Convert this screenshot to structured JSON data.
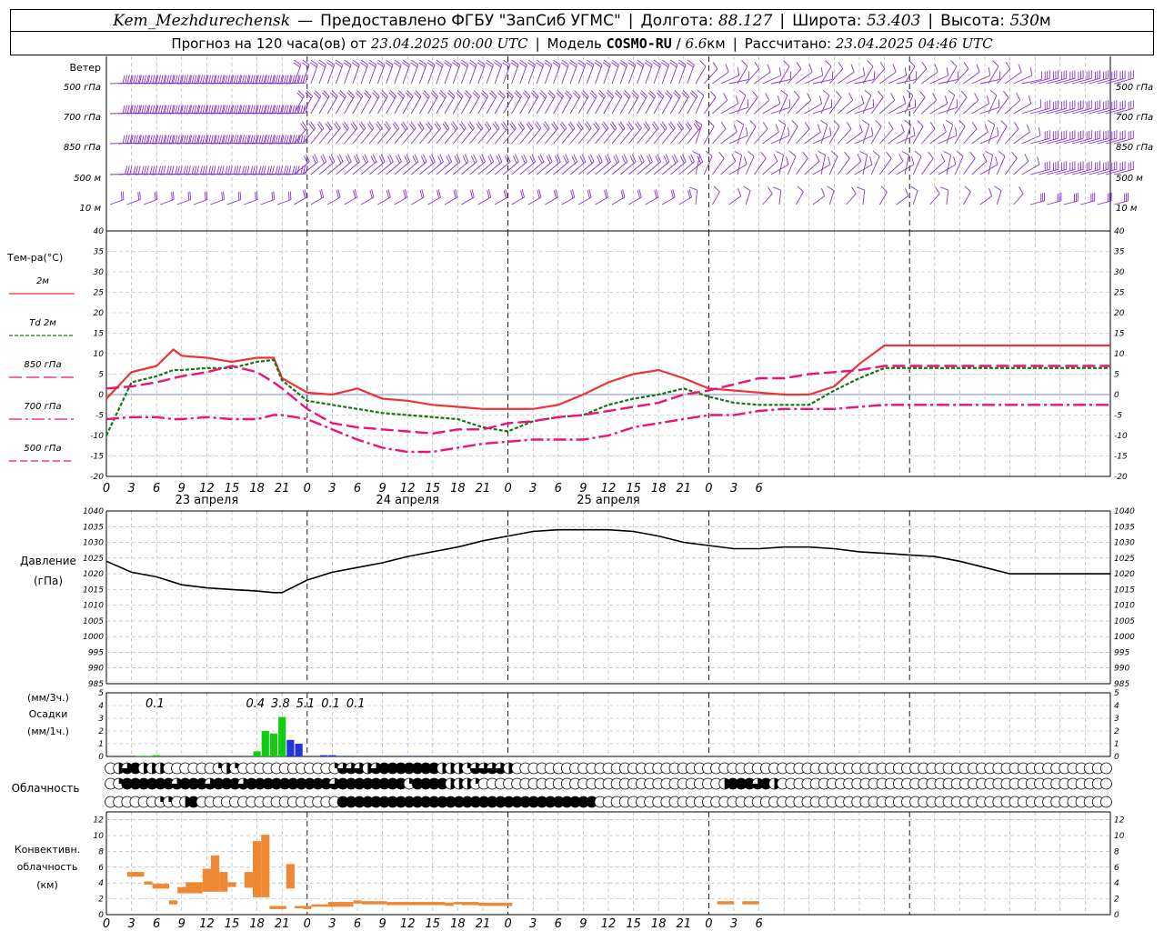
{
  "header": {
    "station": "Kem_Mezhdurechensk",
    "provider": "Предоставлено ФГБУ \"ЗапСиб УГМС\"",
    "lon_label": "Долгота:",
    "lon": "88.127",
    "lat_label": "Широта:",
    "lat": "53.403",
    "alt_label": "Высота:",
    "alt": "530",
    "alt_unit": "м",
    "forecast_label": "Прогноз на 120 часа(ов) от",
    "forecast_from": "23.04.2025 00:00 UTC",
    "model_label": "Модель",
    "model": "COSMO-RU",
    "model_res": "6.6",
    "model_res_unit": "км",
    "computed_label": "Рассчитано:",
    "computed": "23.04.2025 04:46 UTC"
  },
  "time_axis": {
    "hour_labels": [
      "0",
      "3",
      "6",
      "9",
      "12",
      "15",
      "18",
      "21",
      "0",
      "3",
      "6",
      "9",
      "12",
      "15",
      "18",
      "21",
      "0",
      "3",
      "6",
      "9",
      "12",
      "15",
      "18",
      "21",
      "0",
      "3",
      "6"
    ],
    "day_labels": [
      "23 апреля",
      "24 апреля",
      "25 апреля"
    ]
  },
  "wind_panel": {
    "title": "Ветер",
    "levels": [
      "500 гПа",
      "700 гПа",
      "850 гПа",
      "500 м",
      "10  м"
    ]
  },
  "chart_data": [
    {
      "type": "line",
      "panel": "temperature",
      "title": "Тем-ра(°C)",
      "ylim": [
        -20,
        40
      ],
      "yticks": [
        "-20",
        "-15",
        "-10",
        "-5",
        "0",
        "5",
        "10",
        "15",
        "20",
        "25",
        "30",
        "35",
        "40"
      ],
      "x_hours": [
        0,
        3,
        6,
        8,
        9,
        12,
        15,
        18,
        20,
        21,
        24,
        27,
        30,
        33,
        36,
        39,
        42,
        45,
        48,
        51,
        54,
        57,
        60,
        63,
        66,
        69,
        72,
        75,
        78,
        81,
        84,
        87,
        90,
        93,
        96,
        99,
        102,
        105,
        108,
        111,
        114,
        117,
        120
      ],
      "series": [
        {
          "name": "2м",
          "color": "#ee3333",
          "dash": "",
          "values": [
            -1,
            5.5,
            7,
            11,
            9.5,
            9,
            8,
            9,
            9,
            4,
            0.5,
            0,
            1.5,
            -1,
            -1.5,
            -2.5,
            -3,
            -3.5,
            -3.5,
            -3.5,
            -2.5,
            0,
            3,
            5,
            6,
            4,
            1.5,
            1,
            0.5,
            0,
            0,
            2,
            7.5,
            12,
            12,
            12,
            12,
            12,
            12,
            12,
            12,
            12,
            12
          ]
        },
        {
          "name": "Td 2м",
          "color": "#117711",
          "dash": "4,2",
          "values": [
            -10,
            3,
            4.5,
            6,
            6,
            6.5,
            6.5,
            8,
            8.5,
            3.5,
            -1.5,
            -2.5,
            -3.5,
            -4.5,
            -5,
            -5.5,
            -6,
            -8,
            -9,
            -6.5,
            -5.5,
            -5,
            -2.5,
            -1,
            0,
            1.5,
            -0.5,
            -2,
            -2.5,
            -2.5,
            -2.5,
            1,
            4,
            6.5,
            6.5,
            6.5,
            6.5,
            6.5,
            6.5,
            6.5,
            6.5,
            6.5,
            6.5
          ]
        },
        {
          "name": "850 гПа",
          "color": "#ee1177",
          "dash": "14,5",
          "values": [
            1.5,
            2,
            3,
            4,
            4.5,
            5.5,
            7,
            5.5,
            3,
            1.5,
            -3.5,
            -7,
            -8,
            -8.5,
            -9,
            -9.5,
            -8.5,
            -8.5,
            -7,
            -6.5,
            -5.5,
            -5,
            -4,
            -3,
            -2,
            0,
            1,
            2.5,
            4,
            4,
            5,
            5.5,
            6,
            7,
            7,
            7,
            7,
            7,
            7,
            7,
            7,
            7,
            7
          ]
        },
        {
          "name": "700 гПа",
          "color": "#ee1177",
          "dash": "14,4,3,4",
          "values": [
            -6,
            -5.5,
            -5.5,
            -6,
            -6,
            -5.5,
            -6,
            -6,
            -5,
            -5,
            -6,
            -8.5,
            -11,
            -13,
            -14,
            -14,
            -13,
            -12,
            -11.5,
            -11,
            -11,
            -11,
            -10,
            -8,
            -7,
            -6,
            -5,
            -5,
            -4,
            -3.5,
            -3.5,
            -3.5,
            -3,
            -2.5,
            -2.5,
            -2.5,
            -2.5,
            -2.5,
            -2.5,
            -2.5,
            -2.5,
            -2.5,
            -2.5
          ]
        },
        {
          "name": "500 гПа",
          "color": "#ee1177",
          "dash": "8,4",
          "values": []
        }
      ]
    },
    {
      "type": "line",
      "panel": "pressure",
      "title": "Давление",
      "ylabel": "(гПа)",
      "ylim": [
        985,
        1040
      ],
      "yticks": [
        "985",
        "990",
        "995",
        "1000",
        "1005",
        "1010",
        "1015",
        "1020",
        "1025",
        "1030",
        "1035",
        "1040"
      ],
      "x_hours": [
        0,
        3,
        6,
        9,
        12,
        15,
        18,
        20,
        21,
        24,
        27,
        30,
        33,
        36,
        39,
        42,
        45,
        48,
        51,
        54,
        57,
        60,
        63,
        66,
        69,
        72,
        75,
        78,
        81,
        84,
        87,
        90,
        93,
        96,
        99,
        102,
        105,
        108,
        111,
        114,
        117,
        120
      ],
      "series": [
        {
          "name": "",
          "color": "#000000",
          "values": [
            1024,
            1020.5,
            1019,
            1016.5,
            1015.5,
            1015,
            1014.5,
            1014,
            1014,
            1018,
            1020.5,
            1022,
            1023.5,
            1025.5,
            1027,
            1028.5,
            1030.5,
            1032,
            1033.5,
            1034,
            1034,
            1034,
            1033.5,
            1032,
            1030,
            1029,
            1028,
            1028,
            1028.5,
            1028.5,
            1028,
            1027,
            1026.5,
            1026,
            1025.5,
            1024,
            1022,
            1020,
            1020,
            1020,
            1020,
            1020
          ]
        }
      ]
    },
    {
      "type": "bar",
      "panel": "precipitation",
      "ylabel": "(мм/3ч.)",
      "title": "Осадки",
      "ylabel2": "(мм/1ч.)",
      "ylim": [
        0,
        5
      ],
      "yticks": [
        "0",
        "1",
        "2",
        "3",
        "4",
        "5"
      ],
      "x_hours": [
        4,
        5,
        6,
        7,
        8,
        18,
        19,
        20,
        21,
        22,
        23,
        24,
        25,
        26,
        27,
        28,
        36,
        37,
        38,
        39,
        40,
        41,
        42
      ],
      "rain_mm_per_hour": [
        0.05,
        0.05,
        0.1,
        0,
        0,
        0.4,
        2,
        1.8,
        3.1,
        0,
        0,
        0,
        0,
        0,
        0,
        0,
        0,
        0,
        0,
        0,
        0,
        0,
        0
      ],
      "snow_mm_per_hour": [
        0,
        0,
        0,
        0,
        0,
        0,
        0,
        0,
        0,
        1.3,
        1.0,
        0,
        0,
        0.1,
        0.1,
        0.05,
        0.05,
        0.05,
        0.05,
        0,
        0,
        0,
        0
      ],
      "totals_3h": [
        {
          "hour": 4.5,
          "value": "0.1"
        },
        {
          "hour": 16.5,
          "value": "0.4"
        },
        {
          "hour": 19.5,
          "value": "3.8"
        },
        {
          "hour": 22.5,
          "value": "5.1"
        },
        {
          "hour": 25.5,
          "value": "0.1"
        },
        {
          "hour": 28.5,
          "value": "0.1"
        }
      ],
      "colors": {
        "rain": "#11cc11",
        "snow": "#2233dd"
      }
    },
    {
      "type": "table",
      "panel": "cloudiness",
      "title": "Облачность",
      "note": "oktas per hour, rows top→bottom: upper, middle, lower",
      "rows": [
        [
          0,
          4,
          6,
          8,
          4,
          4,
          4,
          0,
          0,
          0,
          0,
          0,
          0,
          2,
          4,
          2,
          0,
          0,
          0,
          0,
          0,
          0,
          0,
          0,
          0,
          0,
          0,
          2,
          6,
          6,
          6,
          4,
          6,
          8,
          8,
          8,
          8,
          8,
          8,
          8,
          4,
          4,
          4,
          2,
          6,
          6,
          6,
          6,
          4,
          0,
          0,
          0,
          0,
          0,
          0,
          0,
          0,
          0,
          0,
          0,
          0,
          0,
          0,
          0,
          0,
          0,
          0,
          0,
          0,
          0,
          0,
          0,
          0,
          0,
          0,
          0,
          0,
          0,
          0,
          0,
          0,
          0,
          0,
          0,
          0,
          0,
          0,
          0,
          0,
          0,
          0,
          0,
          0,
          0,
          0,
          0,
          0,
          0,
          0,
          0,
          0,
          0,
          0,
          0,
          0,
          0,
          0,
          0,
          0,
          0,
          0,
          0,
          0,
          0,
          0,
          0,
          0,
          0,
          0,
          0,
          0
        ],
        [
          0,
          2,
          8,
          8,
          8,
          8,
          8,
          8,
          6,
          8,
          8,
          8,
          6,
          8,
          8,
          8,
          6,
          8,
          8,
          8,
          8,
          8,
          8,
          8,
          8,
          8,
          8,
          6,
          8,
          8,
          8,
          8,
          8,
          8,
          8,
          8,
          2,
          8,
          8,
          8,
          8,
          4,
          4,
          4,
          2,
          0,
          0,
          0,
          0,
          0,
          0,
          0,
          0,
          0,
          0,
          0,
          0,
          0,
          0,
          0,
          0,
          0,
          0,
          0,
          0,
          0,
          0,
          0,
          0,
          0,
          0,
          0,
          0,
          0,
          4,
          8,
          8,
          8,
          6,
          8,
          4,
          0,
          0,
          0,
          0,
          0,
          0,
          0,
          0,
          0,
          0,
          0,
          0,
          0,
          0,
          0,
          0,
          0,
          0,
          0,
          0,
          0,
          0,
          0,
          0,
          0,
          0,
          0,
          0,
          0,
          0,
          0,
          0,
          0,
          0,
          0,
          0,
          0,
          0,
          0,
          0
        ],
        [
          0,
          0,
          0,
          0,
          0,
          0,
          2,
          2,
          0,
          4,
          8,
          0,
          0,
          0,
          0,
          0,
          0,
          0,
          0,
          0,
          0,
          0,
          0,
          0,
          0,
          0,
          0,
          0,
          8,
          8,
          8,
          8,
          8,
          8,
          8,
          8,
          8,
          8,
          8,
          8,
          8,
          8,
          8,
          8,
          8,
          8,
          8,
          8,
          8,
          8,
          8,
          8,
          8,
          8,
          8,
          8,
          8,
          8,
          8,
          0,
          0,
          0,
          0,
          0,
          0,
          0,
          0,
          0,
          0,
          0,
          0,
          0,
          0,
          0,
          0,
          0,
          0,
          0,
          0,
          0,
          0,
          0,
          0,
          0,
          0,
          0,
          0,
          0,
          0,
          0,
          0,
          0,
          0,
          0,
          0,
          0,
          0,
          0,
          0,
          0,
          0,
          0,
          0,
          0,
          0,
          0,
          0,
          0,
          0,
          0,
          0,
          0,
          0,
          0,
          0,
          0,
          0,
          0,
          0,
          0,
          0
        ]
      ]
    },
    {
      "type": "bar",
      "panel": "convective",
      "title": "Конвективн.",
      "title2": "облачность",
      "ylabel": "(км)",
      "ylim": [
        0,
        13
      ],
      "yticks": [
        "0",
        "2",
        "4",
        "6",
        "8",
        "10",
        "12"
      ],
      "color": "#ee8833",
      "bars": [
        {
          "h0": 2.5,
          "h1": 4.5,
          "base": 4.8,
          "top": 5.4
        },
        {
          "h0": 4.5,
          "h1": 5.5,
          "base": 3.8,
          "top": 4.2
        },
        {
          "h0": 5.5,
          "h1": 7.5,
          "base": 3.3,
          "top": 3.9
        },
        {
          "h0": 7.5,
          "h1": 8.5,
          "base": 1.3,
          "top": 1.8
        },
        {
          "h0": 8.5,
          "h1": 9.5,
          "base": 2.7,
          "top": 3.5
        },
        {
          "h0": 9.5,
          "h1": 11.5,
          "base": 2.7,
          "top": 4.1
        },
        {
          "h0": 11.5,
          "h1": 12.5,
          "base": 2.9,
          "top": 5.8
        },
        {
          "h0": 12.5,
          "h1": 13.5,
          "base": 2.9,
          "top": 7.5
        },
        {
          "h0": 13.5,
          "h1": 14.5,
          "base": 2.9,
          "top": 5.4
        },
        {
          "h0": 14.5,
          "h1": 15.5,
          "base": 3.5,
          "top": 4.1
        },
        {
          "h0": 16.5,
          "h1": 17.5,
          "base": 3.4,
          "top": 5.4
        },
        {
          "h0": 17.5,
          "h1": 18.5,
          "base": 2.2,
          "top": 9.3
        },
        {
          "h0": 18.5,
          "h1": 19.5,
          "base": 2.2,
          "top": 10.1
        },
        {
          "h0": 19.5,
          "h1": 21.5,
          "base": 0.7,
          "top": 1.1
        },
        {
          "h0": 21.5,
          "h1": 22.5,
          "base": 3.3,
          "top": 6.4
        },
        {
          "h0": 22.5,
          "h1": 23.5,
          "base": 0.8,
          "top": 1.1
        },
        {
          "h0": 23.5,
          "h1": 24.5,
          "base": 0.7,
          "top": 1.1
        },
        {
          "h0": 24.5,
          "h1": 26.5,
          "base": 1.0,
          "top": 1.3
        },
        {
          "h0": 26.5,
          "h1": 29.5,
          "base": 1.0,
          "top": 1.6
        },
        {
          "h0": 29.5,
          "h1": 30.5,
          "base": 1.4,
          "top": 1.8
        },
        {
          "h0": 30.5,
          "h1": 33.5,
          "base": 1.3,
          "top": 1.7
        },
        {
          "h0": 33.5,
          "h1": 40.5,
          "base": 1.2,
          "top": 1.6
        },
        {
          "h0": 40.5,
          "h1": 41.5,
          "base": 1.1,
          "top": 1.5
        },
        {
          "h0": 41.5,
          "h1": 42.5,
          "base": 1.3,
          "top": 1.6
        },
        {
          "h0": 42.5,
          "h1": 44.5,
          "base": 1.2,
          "top": 1.6
        },
        {
          "h0": 44.5,
          "h1": 48.5,
          "base": 1.1,
          "top": 1.5
        },
        {
          "h0": 73.0,
          "h1": 75.0,
          "base": 1.3,
          "top": 1.7
        },
        {
          "h0": 76.0,
          "h1": 78.0,
          "base": 1.3,
          "top": 1.7
        }
      ]
    }
  ],
  "colors": {
    "grid": "#aaaaaa",
    "frame": "#000000",
    "wind": "#8833cc",
    "zero_line": "#5566cc",
    "text": "#000000"
  }
}
